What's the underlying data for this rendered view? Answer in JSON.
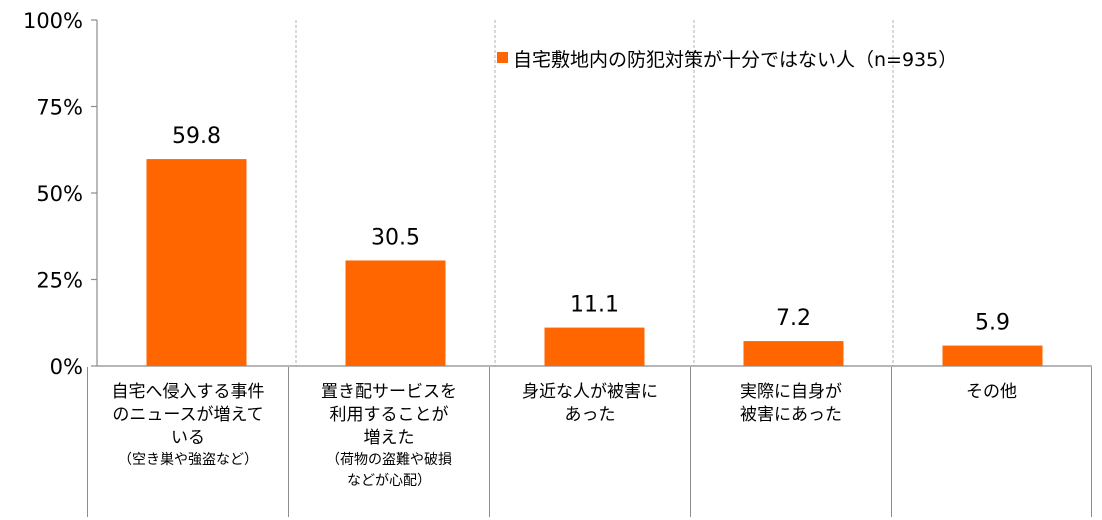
{
  "chart_data": {
    "type": "bar",
    "categories": [
      "自宅へ侵入する事件のニュースが増えている",
      "置き配サービスを利用することが増えた",
      "身近な人が被害にあった",
      "実際に自身が被害にあった",
      "その他"
    ],
    "category_lines": [
      [
        "自宅へ侵入する事件",
        "のニュースが増えて",
        "いる"
      ],
      [
        "置き配サービスを",
        "利用することが",
        "増えた"
      ],
      [
        "身近な人が被害に",
        "あった"
      ],
      [
        "実際に自身が",
        "被害にあった"
      ],
      [
        "その他"
      ]
    ],
    "category_notes": [
      [
        "（空き巣や強盗など）"
      ],
      [
        "（荷物の盗難や破損",
        "などが心配）"
      ],
      [],
      [],
      []
    ],
    "series": [
      {
        "name": "自宅敷地内の防犯対策が十分ではない人（n=935）",
        "values": [
          59.8,
          30.5,
          11.1,
          7.2,
          5.9
        ],
        "color": "#FF6600"
      }
    ],
    "data_labels": [
      "59.8",
      "30.5",
      "11.1",
      "7.2",
      "5.9"
    ],
    "yticks": [
      "0%",
      "25%",
      "50%",
      "75%",
      "100%"
    ],
    "ylim": [
      0,
      100
    ],
    "legend_position": "top-right",
    "grid": "vertical dashed separators between categories"
  }
}
